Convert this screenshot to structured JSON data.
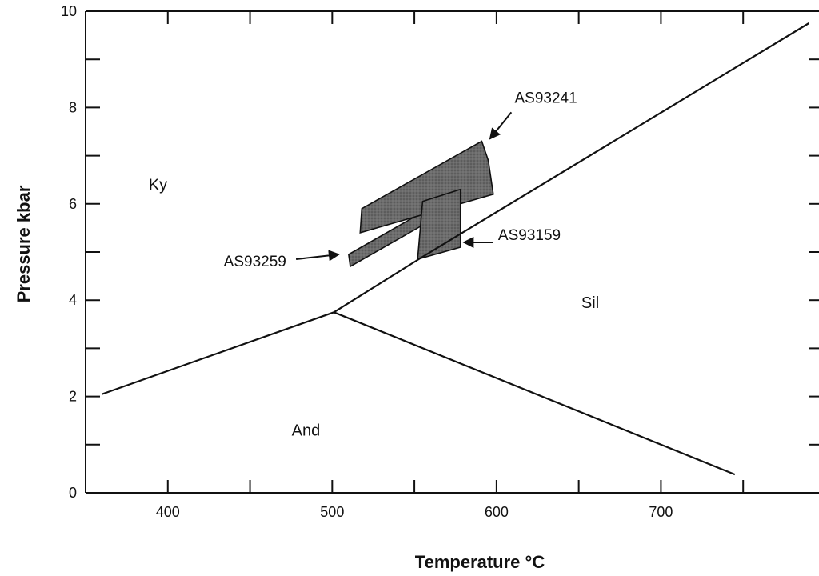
{
  "chart_data": {
    "type": "line",
    "xlabel": "Temperature °C",
    "ylabel": "Pressure kbar",
    "xlim": [
      350,
      800
    ],
    "ylim": [
      0,
      10
    ],
    "x_ticks": [
      400,
      500,
      600,
      700
    ],
    "y_ticks": [
      0,
      2,
      4,
      6,
      8,
      10
    ],
    "grid": false,
    "series": [
      {
        "id": "ky-and",
        "points": [
          [
            360,
            2.05
          ],
          [
            501,
            3.75
          ]
        ]
      },
      {
        "id": "ky-sil",
        "points": [
          [
            501,
            3.75
          ],
          [
            555,
            4.9
          ],
          [
            790,
            9.75
          ]
        ]
      },
      {
        "id": "and-sil",
        "points": [
          [
            501,
            3.75
          ],
          [
            745,
            0.38
          ]
        ]
      }
    ],
    "regions": [
      {
        "id": "and-region",
        "label": "And"
      },
      {
        "id": "ky-region",
        "label": "Ky"
      },
      {
        "id": "sil-region",
        "label": "Sil"
      }
    ],
    "region_positions": {
      "and-region": [
        484,
        1.3
      ],
      "ky-region": [
        394,
        6.4
      ],
      "sil-region": [
        657,
        3.95
      ]
    },
    "samples": [
      {
        "id": "AS93259",
        "label": "AS93259",
        "polygon": [
          [
            510,
            4.95
          ],
          [
            587,
            6.45
          ],
          [
            588,
            6.2
          ],
          [
            511,
            4.7
          ]
        ]
      },
      {
        "id": "AS93241",
        "label": "AS93241",
        "polygon": [
          [
            518,
            5.9
          ],
          [
            591,
            7.3
          ],
          [
            595,
            6.9
          ],
          [
            598,
            6.2
          ],
          [
            517,
            5.4
          ]
        ]
      },
      {
        "id": "AS93159",
        "label": "AS93159",
        "polygon": [
          [
            555,
            6.05
          ],
          [
            578,
            6.3
          ],
          [
            578,
            5.1
          ],
          [
            552,
            4.85
          ]
        ]
      }
    ],
    "annotations": [
      {
        "label": "AS93241",
        "text_at": [
          611,
          8.2
        ],
        "arrow_from": [
          609,
          7.9
        ],
        "arrow_to": [
          596,
          7.35
        ]
      },
      {
        "label": "AS93259",
        "text_at": [
          434,
          4.8
        ],
        "arrow_from": [
          478,
          4.85
        ],
        "arrow_to": [
          504,
          4.95
        ]
      },
      {
        "label": "AS93159",
        "text_at": [
          601,
          5.35
        ],
        "arrow_from": [
          598,
          5.2
        ],
        "arrow_to": [
          580,
          5.2
        ]
      }
    ]
  }
}
